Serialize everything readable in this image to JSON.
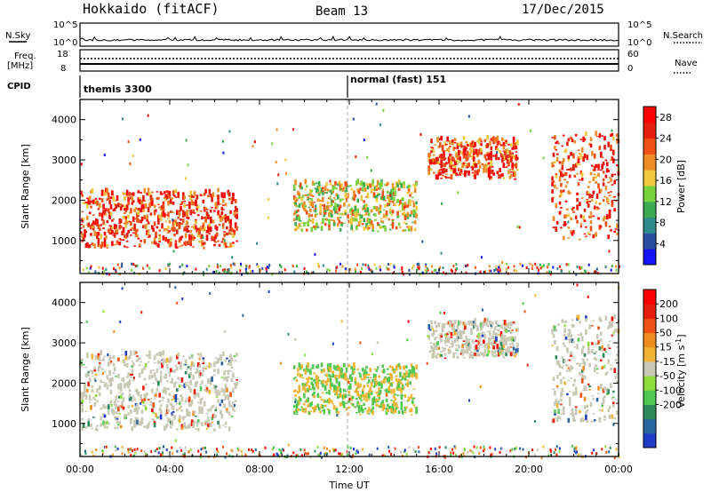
{
  "header": {
    "radar": "Hokkaido (fitACF)",
    "beam": "Beam 13",
    "date": "17/Dec/2015"
  },
  "status": {
    "nsky_label": "N.Sky",
    "nsky_ticks": [
      "10^5",
      "10^0"
    ],
    "nsearch_label": "N.Search",
    "nsearch_ticks": [
      "10^5",
      "10^0"
    ],
    "freq_label": "Freq.",
    "freq_unit": "[MHz]",
    "freq_ticks": [
      "18",
      "8"
    ],
    "nave_label": "Nave",
    "nave_ticks": [
      "60",
      "0"
    ],
    "cpid_label": "CPID",
    "cpid_segments": [
      {
        "name": "themis 3300",
        "start_h": 0,
        "end_h": 12
      },
      {
        "name": "normal (fast) 151",
        "start_h": 12,
        "end_h": 24
      }
    ]
  },
  "chart_data": [
    {
      "type": "heatmap",
      "parameter": "power",
      "ylabel": "Slant Range [km]",
      "xlim_hours": [
        0,
        24
      ],
      "ylim_km": [
        180,
        4500
      ],
      "y_ticks": [
        "1000",
        "2000",
        "3000",
        "4000"
      ],
      "colorbar": {
        "label": "Power [dB]",
        "ticks": [
          "4",
          "8",
          "12",
          "16",
          "20",
          "24",
          "28"
        ],
        "range": [
          0,
          30
        ],
        "colors": [
          "#1414ff",
          "#2850a0",
          "#2f8a8c",
          "#3caa50",
          "#78d23c",
          "#f0c83c",
          "#f08c28",
          "#f05014",
          "#e61e0a",
          "#ff0000"
        ]
      },
      "echo_regions": [
        {
          "start_h": 0.0,
          "end_h": 7.0,
          "range_km": [
            800,
            2200
          ],
          "level": "strong"
        },
        {
          "start_h": 9.5,
          "end_h": 15.0,
          "range_km": [
            1200,
            2400
          ],
          "level": "moderate"
        },
        {
          "start_h": 15.5,
          "end_h": 19.5,
          "range_km": [
            2500,
            3500
          ],
          "level": "strong"
        },
        {
          "start_h": 21.0,
          "end_h": 24.0,
          "range_km": [
            1000,
            3600
          ],
          "level": "strong"
        }
      ]
    },
    {
      "type": "heatmap",
      "parameter": "velocity",
      "xlabel": "Time UT",
      "ylabel": "Slant Range [km]",
      "xlim_hours": [
        0,
        24
      ],
      "ylim_km": [
        180,
        4500
      ],
      "y_ticks": [
        "1000",
        "2000",
        "3000",
        "4000"
      ],
      "x_ticks": [
        "00:00",
        "04:00",
        "08:00",
        "12:00",
        "16:00",
        "20:00",
        "00:00"
      ],
      "colorbar": {
        "label": "Velocity [m s",
        "label_sup": "-1",
        "label_end": "]",
        "ticks": [
          "200",
          "100",
          "50",
          "15",
          "-15",
          "-50",
          "-100",
          "-200"
        ],
        "colors": [
          "#1e3cc8",
          "#2864a0",
          "#2d8c5a",
          "#50c850",
          "#8cdc3c",
          "#c8c8b4",
          "#f0b432",
          "#f08c1e",
          "#f05014",
          "#e61e0a",
          "#ff0000"
        ]
      },
      "echo_regions": [
        {
          "start_h": 0.0,
          "end_h": 7.0,
          "range_km": [
            800,
            2700
          ],
          "class": "ground-scatter"
        },
        {
          "start_h": 9.5,
          "end_h": 15.0,
          "range_km": [
            1200,
            2400
          ],
          "class": "mixed"
        },
        {
          "start_h": 15.5,
          "end_h": 19.5,
          "range_km": [
            2600,
            3500
          ],
          "class": "ground-scatter"
        },
        {
          "start_h": 21.0,
          "end_h": 24.0,
          "range_km": [
            1000,
            3600
          ],
          "class": "ground-scatter"
        }
      ]
    }
  ]
}
